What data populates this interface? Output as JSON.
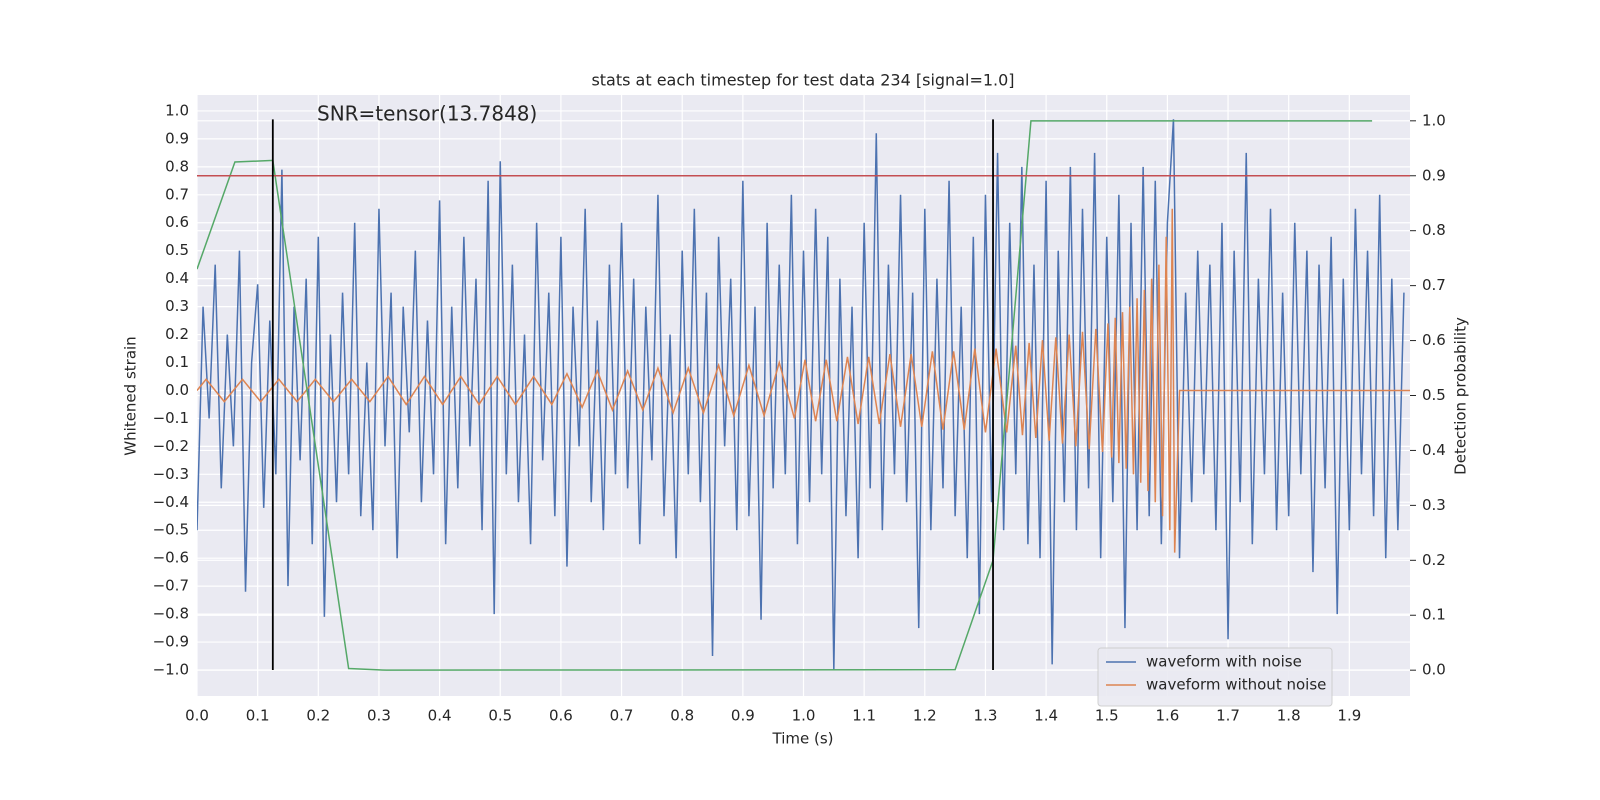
{
  "chart_data": {
    "type": "line",
    "title": "stats at each timestep for test data 234 [signal=1.0]",
    "xlabel": "Time (s)",
    "ylabel": "Whitened strain",
    "y2label": "Detection probability",
    "annotation": "SNR=tensor(13.7848)",
    "xlim": [
      0,
      2.0
    ],
    "ylim": [
      -1.093,
      1.057
    ],
    "y2lim": [
      -0.047,
      1.047
    ],
    "xticks": [
      {
        "value": 0,
        "label": "0.0"
      },
      0.1,
      0.2,
      0.3,
      0.4,
      0.5,
      0.6,
      0.7,
      0.8,
      0.9,
      {
        "value": 1,
        "label": "1.0"
      },
      1.1,
      1.2,
      1.3,
      1.4,
      1.5,
      1.6,
      1.7,
      1.8,
      1.9
    ],
    "yticks": [
      {
        "value": -1,
        "label": "−1.0"
      },
      {
        "value": -0.9,
        "label": "−0.9"
      },
      {
        "value": -0.8,
        "label": "−0.8"
      },
      {
        "value": -0.7,
        "label": "−0.7"
      },
      {
        "value": -0.6,
        "label": "−0.6"
      },
      {
        "value": -0.5,
        "label": "−0.5"
      },
      {
        "value": -0.4,
        "label": "−0.4"
      },
      {
        "value": -0.3,
        "label": "−0.3"
      },
      {
        "value": -0.2,
        "label": "−0.2"
      },
      {
        "value": -0.1,
        "label": "−0.1"
      },
      {
        "value": 0,
        "label": "0.0"
      },
      0.1,
      0.2,
      0.3,
      0.4,
      0.5,
      0.6,
      0.7,
      0.8,
      0.9,
      {
        "value": 1,
        "label": "1.0"
      }
    ],
    "y2ticks": [
      {
        "value": 0,
        "label": "0.0"
      },
      0.1,
      0.2,
      0.3,
      0.4,
      0.5,
      0.6,
      0.7,
      0.8,
      0.9,
      {
        "value": 1,
        "label": "1.0"
      }
    ],
    "grid": true,
    "legend": "lower right",
    "series": [
      {
        "name": "waveform with noise",
        "color": "#4c72b0",
        "axis": "y",
        "x": [
          0,
          0.01,
          0.02,
          0.03,
          0.04,
          0.05,
          0.06,
          0.07,
          0.08,
          0.09,
          0.1,
          0.11,
          0.12,
          0.13,
          0.14,
          0.15,
          0.16,
          0.17,
          0.18,
          0.19,
          0.2,
          0.21,
          0.22,
          0.23,
          0.24,
          0.25,
          0.26,
          0.27,
          0.28,
          0.29,
          0.3,
          0.31,
          0.32,
          0.33,
          0.34,
          0.35,
          0.36,
          0.37,
          0.38,
          0.39,
          0.4,
          0.41,
          0.42,
          0.43,
          0.44,
          0.45,
          0.46,
          0.47,
          0.48,
          0.49,
          0.5,
          0.51,
          0.52,
          0.53,
          0.54,
          0.55,
          0.56,
          0.57,
          0.58,
          0.59,
          0.6,
          0.61,
          0.62,
          0.63,
          0.64,
          0.65,
          0.66,
          0.67,
          0.68,
          0.69,
          0.7,
          0.71,
          0.72,
          0.73,
          0.74,
          0.75,
          0.76,
          0.77,
          0.78,
          0.79,
          0.8,
          0.81,
          0.82,
          0.83,
          0.84,
          0.85,
          0.86,
          0.87,
          0.88,
          0.89,
          0.9,
          0.91,
          0.92,
          0.93,
          0.94,
          0.95,
          0.96,
          0.97,
          0.98,
          0.99,
          1,
          1.01,
          1.02,
          1.03,
          1.04,
          1.05,
          1.06,
          1.07,
          1.08,
          1.09,
          1.1,
          1.11,
          1.12,
          1.13,
          1.14,
          1.15,
          1.16,
          1.17,
          1.18,
          1.19,
          1.2,
          1.21,
          1.22,
          1.23,
          1.24,
          1.25,
          1.26,
          1.27,
          1.28,
          1.29,
          1.3,
          1.31,
          1.32,
          1.33,
          1.34,
          1.35,
          1.36,
          1.37,
          1.38,
          1.39,
          1.4,
          1.41,
          1.42,
          1.43,
          1.44,
          1.45,
          1.46,
          1.47,
          1.48,
          1.49,
          1.5,
          1.51,
          1.52,
          1.53,
          1.54,
          1.55,
          1.56,
          1.57,
          1.58,
          1.59,
          1.6,
          1.61,
          1.62,
          1.63,
          1.64,
          1.65,
          1.66,
          1.67,
          1.68,
          1.69,
          1.7,
          1.71,
          1.72,
          1.73,
          1.74,
          1.75,
          1.76,
          1.77,
          1.78,
          1.79,
          1.8,
          1.81,
          1.82,
          1.83,
          1.84,
          1.85,
          1.86,
          1.87,
          1.88,
          1.89,
          1.9,
          1.91,
          1.92,
          1.93,
          1.94,
          1.95,
          1.96,
          1.97,
          1.98,
          1.99
        ],
        "values": [
          -0.5,
          0.3,
          -0.1,
          0.45,
          -0.35,
          0.2,
          -0.2,
          0.5,
          -0.72,
          0.1,
          0.38,
          -0.42,
          0.25,
          -0.3,
          0.79,
          -0.7,
          0.3,
          -0.25,
          0.4,
          -0.55,
          0.55,
          -0.81,
          0.2,
          -0.4,
          0.35,
          -0.3,
          0.6,
          -0.45,
          0.1,
          -0.5,
          0.65,
          -0.2,
          0.35,
          -0.6,
          0.3,
          -0.15,
          0.5,
          -0.4,
          0.25,
          -0.3,
          0.68,
          -0.55,
          0.3,
          -0.35,
          0.55,
          -0.2,
          0.4,
          -0.5,
          0.75,
          -0.8,
          0.82,
          -0.3,
          0.45,
          -0.4,
          0.2,
          -0.55,
          0.6,
          -0.25,
          0.35,
          -0.45,
          0.55,
          -0.63,
          0.3,
          -0.2,
          0.65,
          -0.4,
          0.25,
          -0.5,
          0.45,
          -0.3,
          0.6,
          -0.35,
          0.4,
          -0.55,
          0.3,
          -0.25,
          0.7,
          -0.45,
          0.2,
          -0.6,
          0.5,
          -0.3,
          0.65,
          -0.4,
          0.35,
          -0.95,
          0.55,
          -0.2,
          0.4,
          -0.5,
          0.75,
          -0.45,
          0.3,
          -0.82,
          0.6,
          -0.35,
          0.45,
          -0.3,
          0.7,
          -0.55,
          0.5,
          -0.4,
          0.65,
          -0.3,
          0.55,
          -1.0,
          0.4,
          -0.45,
          0.3,
          -0.6,
          0.6,
          -0.35,
          0.92,
          -0.5,
          0.45,
          -0.3,
          0.7,
          -0.4,
          0.35,
          -0.85,
          0.65,
          -0.5,
          0.4,
          -0.35,
          0.75,
          -0.45,
          0.3,
          -0.6,
          0.55,
          -0.8,
          0.7,
          -0.4,
          0.85,
          -0.5,
          0.6,
          -0.3,
          0.8,
          -0.55,
          0.45,
          -0.6,
          0.75,
          -0.98,
          0.5,
          -0.4,
          0.8,
          -0.5,
          0.65,
          -0.35,
          0.85,
          -0.6,
          0.55,
          -0.4,
          0.7,
          -0.85,
          0.6,
          -0.5,
          0.8,
          -0.45,
          0.75,
          -0.55,
          0.6,
          0.97,
          -0.6,
          0.35,
          -0.4,
          0.5,
          -0.3,
          0.45,
          -0.5,
          0.6,
          -0.89,
          0.5,
          -0.4,
          0.85,
          -0.55,
          0.4,
          -0.3,
          0.65,
          -0.5,
          0.35,
          -0.45,
          0.6,
          -0.3,
          0.5,
          -0.65,
          0.45,
          -0.35,
          0.55,
          -0.8,
          0.4,
          -0.5,
          0.65,
          -0.3,
          0.5,
          -0.45,
          0.7,
          -0.6,
          0.4,
          -0.5,
          0.35
        ]
      },
      {
        "name": "waveform without noise",
        "color": "#dd8452",
        "axis": "y",
        "x": [
          0,
          0.015,
          0.045,
          0.075,
          0.105,
          0.135,
          0.165,
          0.195,
          0.225,
          0.255,
          0.285,
          0.315,
          0.345,
          0.375,
          0.405,
          0.435,
          0.465,
          0.495,
          0.525,
          0.555,
          0.585,
          0.61,
          0.635,
          0.66,
          0.685,
          0.71,
          0.735,
          0.76,
          0.785,
          0.81,
          0.835,
          0.86,
          0.885,
          0.91,
          0.935,
          0.96,
          0.985,
          1.0025,
          1.02,
          1.0375,
          1.055,
          1.0725,
          1.09,
          1.1075,
          1.125,
          1.1425,
          1.16,
          1.1775,
          1.195,
          1.2125,
          1.23,
          1.2475,
          1.265,
          1.2825,
          1.3,
          1.3175,
          1.335,
          1.35,
          1.361,
          1.372,
          1.383,
          1.394,
          1.405,
          1.416,
          1.427,
          1.438,
          1.449,
          1.46,
          1.471,
          1.482,
          1.493,
          1.502,
          1.508,
          1.514,
          1.52,
          1.526,
          1.532,
          1.538,
          1.544,
          1.55,
          1.556,
          1.562,
          1.568,
          1.574,
          1.58,
          1.586,
          1.592,
          1.598,
          1.604,
          1.608,
          1.612,
          1.62,
          2.0
        ],
        "values": [
          0,
          0.04,
          -0.04,
          0.04,
          -0.04,
          0.04,
          -0.04,
          0.04,
          -0.04,
          0.04,
          -0.04,
          0.05,
          -0.05,
          0.05,
          -0.05,
          0.05,
          -0.05,
          0.05,
          -0.05,
          0.05,
          -0.05,
          0.06,
          -0.06,
          0.07,
          -0.07,
          0.07,
          -0.07,
          0.08,
          -0.08,
          0.08,
          -0.08,
          0.09,
          -0.09,
          0.09,
          -0.09,
          0.1,
          -0.1,
          0.11,
          -0.11,
          0.11,
          -0.11,
          0.12,
          -0.12,
          0.12,
          -0.12,
          0.13,
          -0.13,
          0.13,
          -0.13,
          0.14,
          -0.14,
          0.14,
          -0.14,
          0.15,
          -0.15,
          0.15,
          -0.15,
          0.16,
          -0.16,
          0.17,
          -0.17,
          0.18,
          -0.18,
          0.19,
          -0.19,
          0.2,
          -0.2,
          0.21,
          -0.21,
          0.22,
          -0.22,
          0.24,
          -0.24,
          0.26,
          -0.26,
          0.28,
          -0.28,
          0.3,
          -0.3,
          0.33,
          -0.33,
          0.36,
          -0.36,
          0.4,
          -0.4,
          0.45,
          -0.45,
          0.55,
          -0.5,
          0.65,
          -0.58,
          0.0,
          0.0
        ]
      },
      {
        "color": "#55a868",
        "axis": "y2",
        "x": [
          0,
          0.0625,
          0.125,
          0.25,
          0.3125,
          1.25,
          1.3125,
          1.375,
          1.9375
        ],
        "values": [
          0.73,
          0.925,
          0.928,
          0.003,
          0.0,
          0.001,
          0.2,
          1.0,
          1.0
        ]
      }
    ],
    "hline_y2": 0.9,
    "hline_color": "#c44e52",
    "vlines": [
      0.125,
      1.3125
    ],
    "vline_ylim": [
      -1.0,
      0.97
    ]
  }
}
